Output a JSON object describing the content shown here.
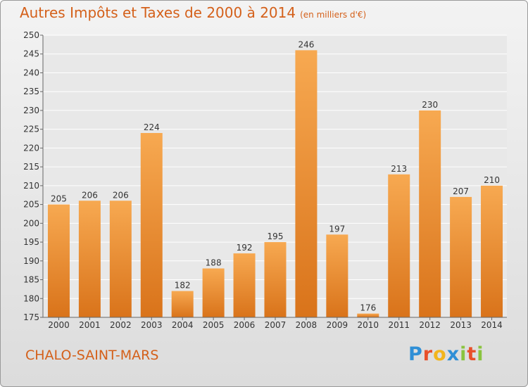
{
  "page": {
    "title": "Autres Impôts et Taxes de 2000 à 2014",
    "title_unit": "(en milliers d'€)",
    "commune": "CHALO-SAINT-MARS",
    "brand": "Proxiti",
    "brand_letters": [
      {
        "ch": "P",
        "color": "#2f8fd6"
      },
      {
        "ch": "r",
        "color": "#e8502a"
      },
      {
        "ch": "o",
        "color": "#f2b51c"
      },
      {
        "ch": "x",
        "color": "#2f8fd6"
      },
      {
        "ch": "i",
        "color": "#8ac43f"
      },
      {
        "ch": "t",
        "color": "#e8502a"
      },
      {
        "ch": "i",
        "color": "#8ac43f"
      }
    ]
  },
  "chart_data": {
    "type": "bar",
    "title": "Autres Impôts et Taxes de 2000 à 2014",
    "subtitle": "(en milliers d'€)",
    "xlabel": "",
    "ylabel": "",
    "categories": [
      "2000",
      "2001",
      "2002",
      "2003",
      "2004",
      "2005",
      "2006",
      "2007",
      "2008",
      "2009",
      "2010",
      "2011",
      "2012",
      "2013",
      "2014"
    ],
    "values": [
      205,
      206,
      206,
      224,
      182,
      188,
      192,
      195,
      246,
      197,
      176,
      213,
      230,
      207,
      210
    ],
    "ylim": [
      175,
      250
    ],
    "yticks": [
      175,
      180,
      185,
      190,
      195,
      200,
      205,
      210,
      215,
      220,
      225,
      230,
      235,
      240,
      245,
      250
    ],
    "grid": true,
    "legend": "none",
    "colors": {
      "bar_light": "#f7a951",
      "bar_dark": "#d9731a",
      "plot_bg": "#e8e8e8"
    }
  }
}
